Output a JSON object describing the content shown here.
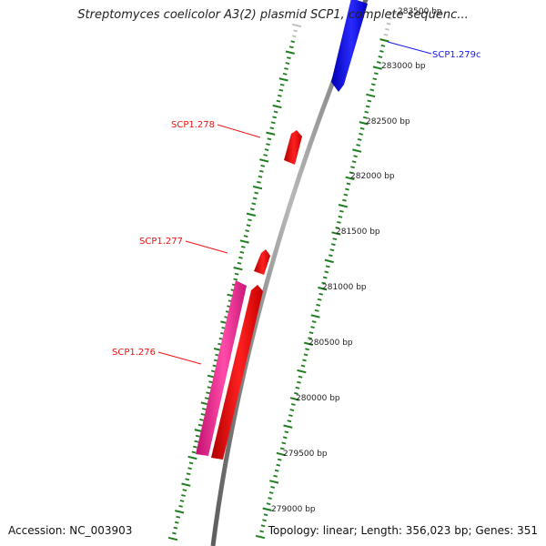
{
  "title": "Streptomyces coelicolor A3(2) plasmid SCP1, complete sequenc...",
  "accession": "Accession: NC_003903",
  "topology": "Topology: linear; Length: 356,023 bp; Genes: 351",
  "colors": {
    "backbone": "#8c8c8c",
    "ticks": "#1e7d1e",
    "forward_gene": "#ee1111",
    "pink_gene": "#ee3399",
    "reverse_gene": "#1a1aee"
  },
  "ticks": [
    {
      "label": "283500 bp"
    },
    {
      "label": "283000 bp"
    },
    {
      "label": "282500 bp"
    },
    {
      "label": "282000 bp"
    },
    {
      "label": "281500 bp"
    },
    {
      "label": "281000 bp"
    },
    {
      "label": "280500 bp"
    },
    {
      "label": "280000 bp"
    },
    {
      "label": "279500 bp"
    },
    {
      "label": "279000 bp"
    }
  ],
  "genes": [
    {
      "label": "SCP1.279c",
      "color": "#1a1aee"
    },
    {
      "label": "SCP1.278",
      "color": "#ee1111"
    },
    {
      "label": "SCP1.277",
      "color": "#ee1111"
    },
    {
      "label": "SCP1.276",
      "color": "#ee1111"
    }
  ]
}
